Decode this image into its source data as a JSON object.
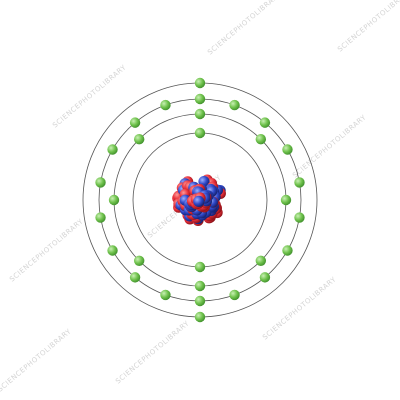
{
  "watermark": {
    "text": "SCIENCEPHOTOLIBRARY"
  },
  "colors": {
    "electron": "#7cc95a",
    "electron_edge": "#3f8f2c",
    "proton": "#e8303a",
    "neutron": "#2f48c8",
    "shell_line": "#555555",
    "background": "#ffffff"
  },
  "diagram": {
    "type": "bohr-atom-model",
    "shells": [
      {
        "index": 1,
        "electrons": 2
      },
      {
        "index": 2,
        "electrons": 8
      },
      {
        "index": 3,
        "electrons": 18
      },
      {
        "index": 4,
        "electrons": 2
      }
    ]
  }
}
